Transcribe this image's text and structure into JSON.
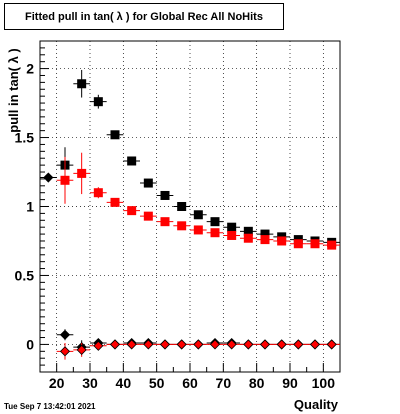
{
  "header": {
    "title": "Fitted pull in tan( λ ) for Global Rec All NoHits"
  },
  "footer": {
    "timestamp": "Tue Sep  7 13:42:01 2021"
  },
  "colors": {
    "series_black": "#000000",
    "series_red": "#ff0000"
  },
  "chart_data": {
    "type": "scatter",
    "title": "Fitted pull in tan( λ ) for Global Rec All NoHits",
    "xlabel": "Quality",
    "ylabel": "pull in tan( λ )",
    "xlim": [
      15,
      105
    ],
    "ylim": [
      -0.2,
      2.2
    ],
    "xticks": [
      20,
      30,
      40,
      50,
      60,
      70,
      80,
      90,
      100
    ],
    "yticks": [
      0,
      0.5,
      1,
      1.5,
      2
    ],
    "grid": true,
    "legend": "none",
    "series": [
      {
        "marker": "square",
        "color": "#000000",
        "points": [
          {
            "x": 22.5,
            "y": 1.3,
            "err": 0.13
          },
          {
            "x": 27.5,
            "y": 1.89,
            "err": 0.1
          },
          {
            "x": 32.5,
            "y": 1.76,
            "err": 0.05
          },
          {
            "x": 37.5,
            "y": 1.52,
            "err": 0.03
          },
          {
            "x": 42.5,
            "y": 1.33,
            "err": 0.02
          },
          {
            "x": 47.5,
            "y": 1.17,
            "err": 0.02
          },
          {
            "x": 52.5,
            "y": 1.08,
            "err": 0.02
          },
          {
            "x": 57.5,
            "y": 1.0,
            "err": 0.015
          },
          {
            "x": 62.5,
            "y": 0.94,
            "err": 0.015
          },
          {
            "x": 67.5,
            "y": 0.89,
            "err": 0.012
          },
          {
            "x": 72.5,
            "y": 0.85,
            "err": 0.012
          },
          {
            "x": 77.5,
            "y": 0.82,
            "err": 0.01
          },
          {
            "x": 82.5,
            "y": 0.8,
            "err": 0.01
          },
          {
            "x": 87.5,
            "y": 0.78,
            "err": 0.01
          },
          {
            "x": 92.5,
            "y": 0.76,
            "err": 0.01
          },
          {
            "x": 97.5,
            "y": 0.75,
            "err": 0.01
          },
          {
            "x": 102.5,
            "y": 0.74,
            "err": 0.01
          }
        ]
      },
      {
        "marker": "square",
        "color": "#ff0000",
        "points": [
          {
            "x": 22.5,
            "y": 1.19,
            "err": 0.17
          },
          {
            "x": 27.5,
            "y": 1.24,
            "err": 0.15
          },
          {
            "x": 32.5,
            "y": 1.1,
            "err": 0.04
          },
          {
            "x": 37.5,
            "y": 1.03,
            "err": 0.03
          },
          {
            "x": 42.5,
            "y": 0.97,
            "err": 0.02
          },
          {
            "x": 47.5,
            "y": 0.93,
            "err": 0.02
          },
          {
            "x": 52.5,
            "y": 0.89,
            "err": 0.015
          },
          {
            "x": 57.5,
            "y": 0.86,
            "err": 0.015
          },
          {
            "x": 62.5,
            "y": 0.83,
            "err": 0.012
          },
          {
            "x": 67.5,
            "y": 0.81,
            "err": 0.012
          },
          {
            "x": 72.5,
            "y": 0.79,
            "err": 0.01
          },
          {
            "x": 77.5,
            "y": 0.77,
            "err": 0.01
          },
          {
            "x": 82.5,
            "y": 0.76,
            "err": 0.01
          },
          {
            "x": 87.5,
            "y": 0.75,
            "err": 0.01
          },
          {
            "x": 92.5,
            "y": 0.73,
            "err": 0.01
          },
          {
            "x": 97.5,
            "y": 0.73,
            "err": 0.01
          },
          {
            "x": 102.5,
            "y": 0.72,
            "err": 0.01
          }
        ]
      },
      {
        "marker": "diamond",
        "color": "#000000",
        "points": [
          {
            "x": 17.5,
            "y": 1.21,
            "err": 0.0
          },
          {
            "x": 22.5,
            "y": 0.07,
            "err": 0.04
          },
          {
            "x": 27.5,
            "y": -0.02,
            "err": 0.05
          },
          {
            "x": 32.5,
            "y": 0.01,
            "err": 0.02
          },
          {
            "x": 37.5,
            "y": 0.0,
            "err": 0.01
          },
          {
            "x": 42.5,
            "y": 0.01,
            "err": 0.01
          },
          {
            "x": 47.5,
            "y": 0.01,
            "err": 0.01
          },
          {
            "x": 52.5,
            "y": 0.0,
            "err": 0.01
          },
          {
            "x": 57.5,
            "y": 0.0,
            "err": 0.01
          },
          {
            "x": 62.5,
            "y": 0.0,
            "err": 0.01
          },
          {
            "x": 67.5,
            "y": 0.01,
            "err": 0.01
          },
          {
            "x": 72.5,
            "y": 0.01,
            "err": 0.01
          },
          {
            "x": 77.5,
            "y": 0.0,
            "err": 0.01
          },
          {
            "x": 82.5,
            "y": 0.0,
            "err": 0.01
          },
          {
            "x": 87.5,
            "y": 0.0,
            "err": 0.01
          },
          {
            "x": 92.5,
            "y": 0.0,
            "err": 0.01
          },
          {
            "x": 97.5,
            "y": 0.0,
            "err": 0.01
          },
          {
            "x": 102.5,
            "y": 0.0,
            "err": 0.01
          }
        ]
      },
      {
        "marker": "diamond",
        "color": "#ff0000",
        "points": [
          {
            "x": 22.5,
            "y": -0.05,
            "err": 0.06
          },
          {
            "x": 27.5,
            "y": -0.04,
            "err": 0.05
          },
          {
            "x": 32.5,
            "y": -0.01,
            "err": 0.02
          },
          {
            "x": 37.5,
            "y": 0.0,
            "err": 0.01
          },
          {
            "x": 42.5,
            "y": 0.0,
            "err": 0.01
          },
          {
            "x": 47.5,
            "y": 0.0,
            "err": 0.01
          },
          {
            "x": 52.5,
            "y": 0.0,
            "err": 0.01
          },
          {
            "x": 57.5,
            "y": 0.0,
            "err": 0.01
          },
          {
            "x": 62.5,
            "y": 0.0,
            "err": 0.01
          },
          {
            "x": 67.5,
            "y": 0.0,
            "err": 0.01
          },
          {
            "x": 72.5,
            "y": 0.0,
            "err": 0.01
          },
          {
            "x": 77.5,
            "y": 0.0,
            "err": 0.01
          },
          {
            "x": 82.5,
            "y": 0.0,
            "err": 0.01
          },
          {
            "x": 87.5,
            "y": 0.0,
            "err": 0.01
          },
          {
            "x": 92.5,
            "y": 0.0,
            "err": 0.01
          },
          {
            "x": 97.5,
            "y": 0.0,
            "err": 0.01
          },
          {
            "x": 102.5,
            "y": 0.0,
            "err": 0.01
          }
        ]
      }
    ]
  }
}
